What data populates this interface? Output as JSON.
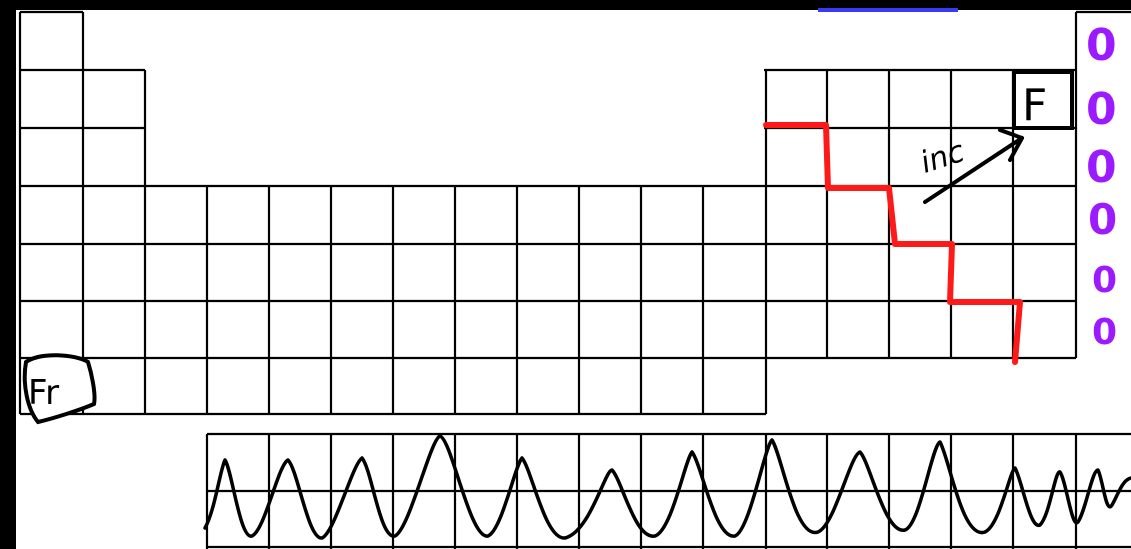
{
  "labels": {
    "francium": "Fr",
    "fluorine": "F",
    "arrow_note": "inc"
  },
  "colors": {
    "grid": "#000000",
    "staircase": "#ff1a1a",
    "noble_gas_marks": "#9b1aff",
    "background": "#ffffff"
  },
  "noble_gas_marks": [
    "0",
    "0",
    "0",
    "0",
    "0",
    "0"
  ]
}
